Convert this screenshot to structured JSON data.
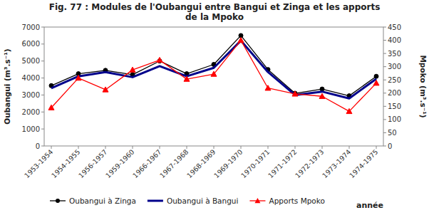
{
  "chart_data": {
    "type": "line",
    "title": "Fig. 77 : Modules de l'Oubangui entre Bangui et Zinga et les apports\nde la Mpoko",
    "categories": [
      "1953-1954",
      "1954-1955",
      "1956-1957",
      "1959-1960",
      "1966-1967",
      "1967-1968",
      "1968-1969",
      "1969-1970",
      "1970-1971",
      "1971-1972",
      "1972-1973",
      "1973-1974",
      "1974-1975"
    ],
    "series": [
      {
        "name": "Oubangui à Zinga",
        "color": "#000000",
        "marker": "circle",
        "line_style": "solid",
        "values": [
          3550,
          4250,
          4450,
          4200,
          5000,
          4250,
          4800,
          6500,
          4500,
          3100,
          3350,
          2950,
          4100
        ]
      },
      {
        "name": "Oubangui à Bangui",
        "color": "#00008B",
        "marker": "none",
        "line_style": "solid",
        "values": [
          3400,
          4100,
          4350,
          4050,
          4700,
          4100,
          4600,
          6200,
          4350,
          3000,
          3200,
          2800,
          3950
        ]
      },
      {
        "name": "Apports Mpoko",
        "color": "#FF0000",
        "marker": "triangle",
        "line_style": "solid",
        "axis": "y2",
        "values": [
          145,
          257,
          213,
          288,
          325,
          253,
          272,
          400,
          219,
          197,
          188,
          131,
          238
        ]
      }
    ],
    "xlabel": "année",
    "ylabel": "Oubangui (m³.s⁻¹)",
    "y2label": "Mpoko (m³.s⁻¹)",
    "ylim": [
      0,
      7000
    ],
    "yticks": [
      0,
      1000,
      2000,
      3000,
      4000,
      5000,
      6000,
      7000
    ],
    "y2lim": [
      0,
      450
    ],
    "y2ticks": [
      0,
      50,
      100,
      150,
      200,
      250,
      300,
      350,
      400,
      450
    ],
    "grid": false,
    "legend": "bottom"
  }
}
